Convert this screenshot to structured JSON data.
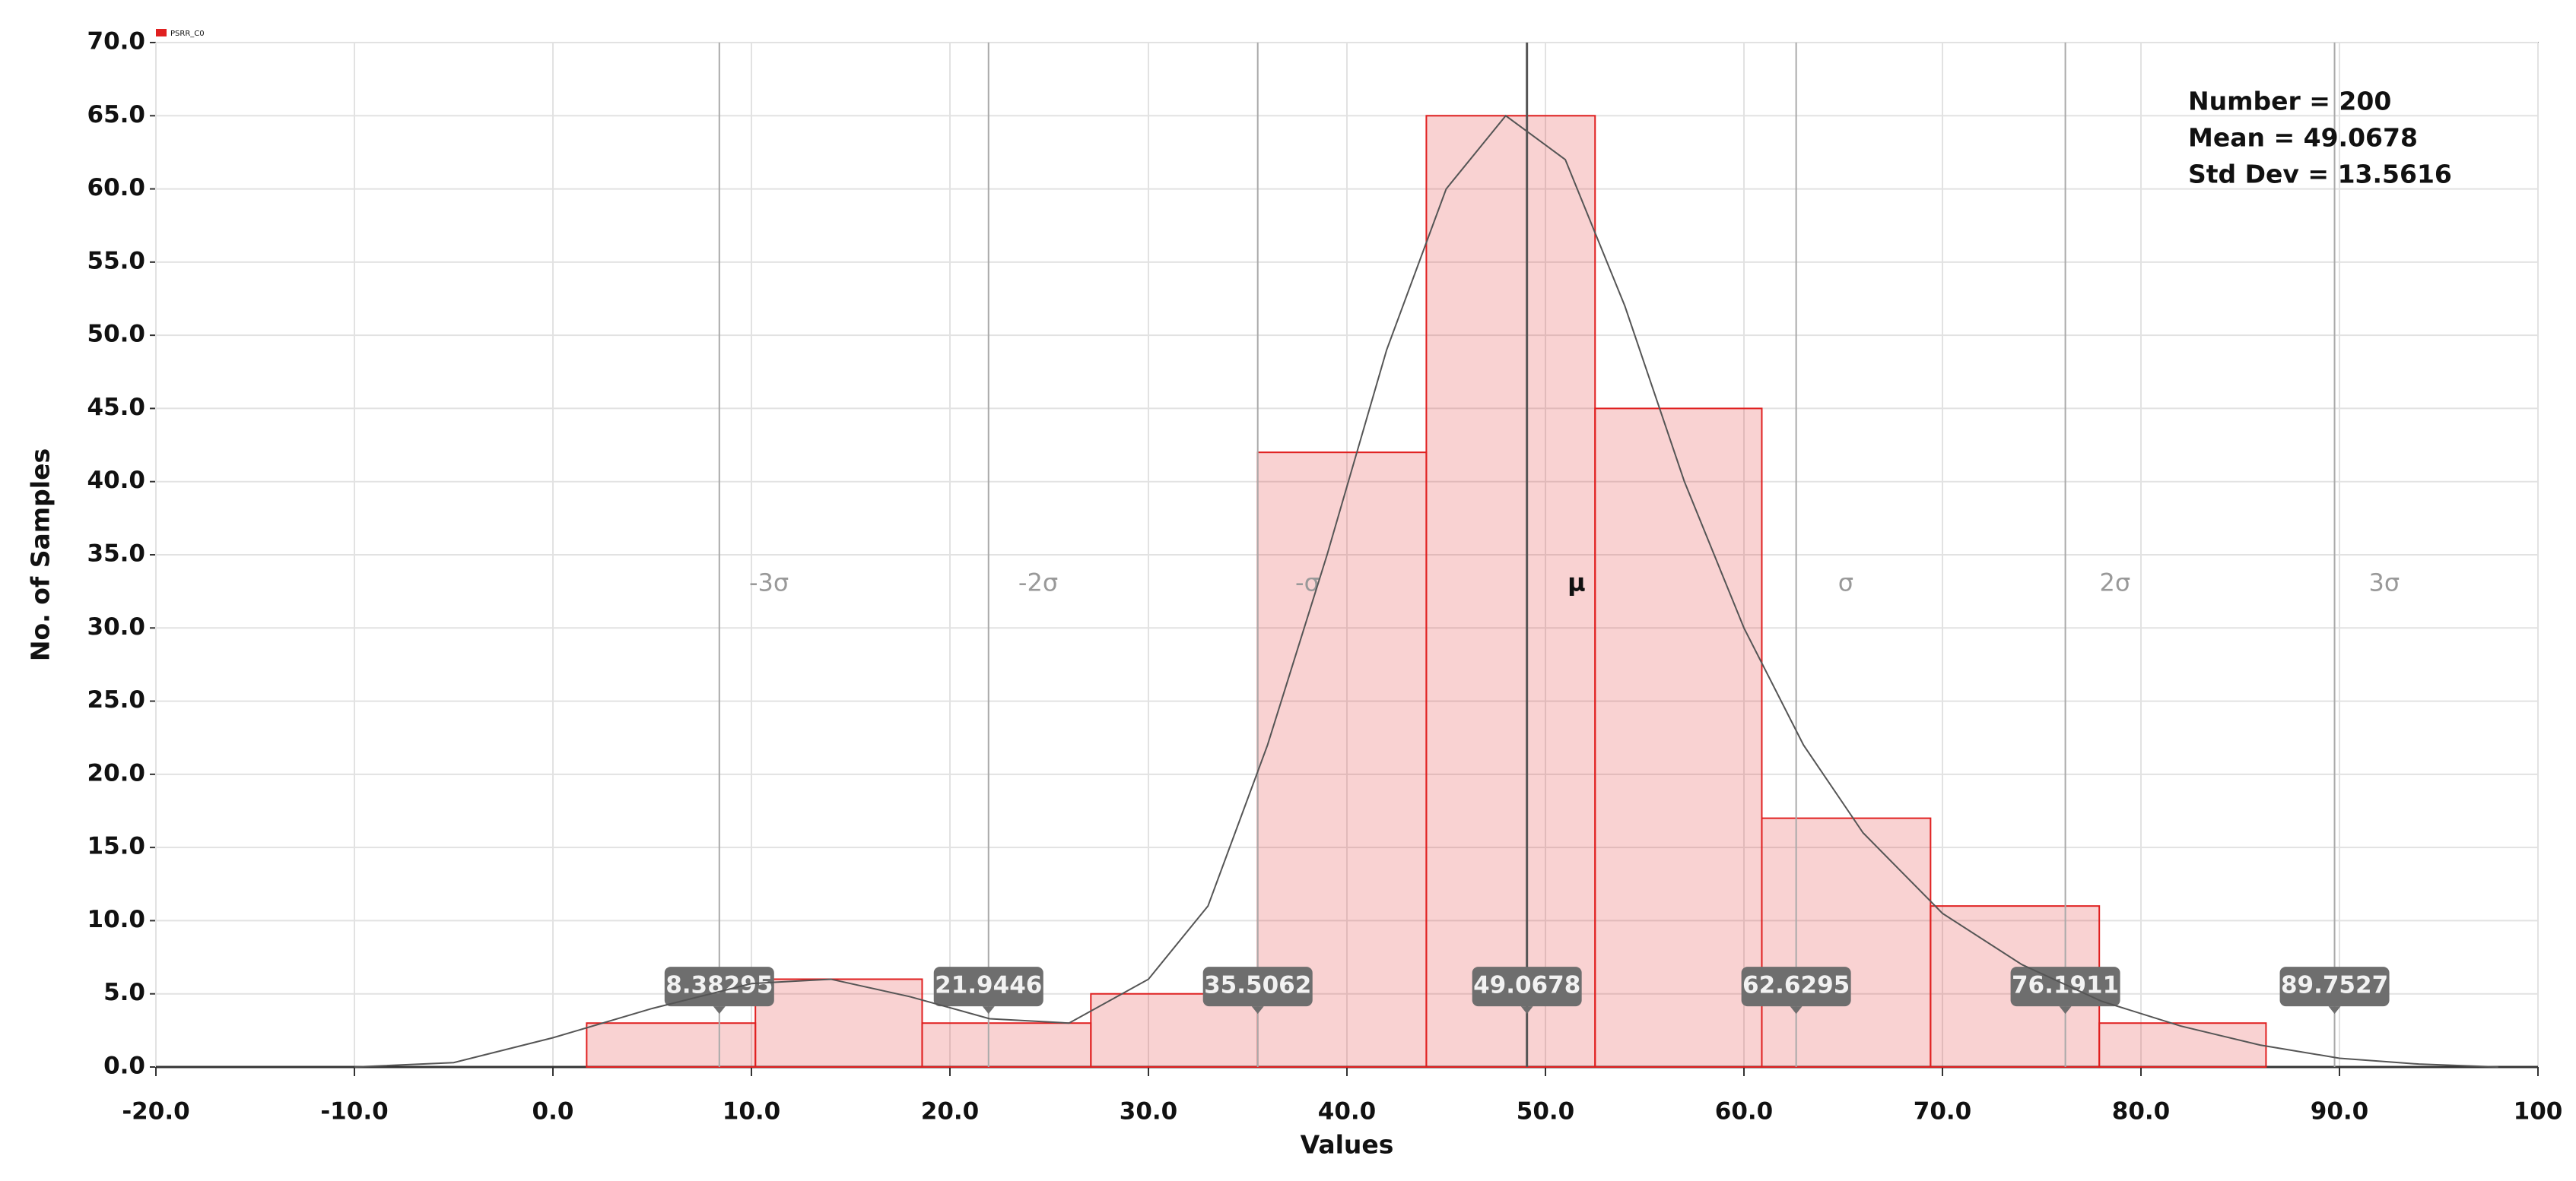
{
  "chart_data": {
    "type": "histogram",
    "legend": "PSRR_C0",
    "x_label": "Values",
    "y_label": "No. of Samples",
    "bins": [
      1.7,
      10.2,
      18.6,
      27.1,
      35.5,
      44.0,
      52.5,
      60.9,
      69.4,
      77.9,
      86.3
    ],
    "values": [
      3,
      6,
      3,
      5,
      42,
      65,
      45,
      17,
      11,
      3
    ],
    "color": "#e02020",
    "curve": {
      "x": [
        -10,
        -5,
        0,
        5,
        10,
        14,
        18,
        22,
        26,
        30,
        33,
        36,
        39,
        42,
        45,
        48,
        51,
        54,
        57,
        60,
        63,
        66,
        70,
        74,
        78,
        82,
        86,
        90,
        94,
        98
      ],
      "y": [
        0,
        0.3,
        2,
        4,
        5.7,
        6,
        4.8,
        3.3,
        3,
        6,
        11,
        22,
        35,
        49,
        60,
        65,
        62,
        52,
        40,
        30,
        22,
        16,
        10.5,
        7,
        4.5,
        2.8,
        1.5,
        0.6,
        0.2,
        0
      ]
    },
    "sigma_lines": [
      8.38295,
      21.9446,
      35.5062,
      49.0678,
      62.6295,
      76.1911,
      89.7527
    ],
    "sigma_labels": [
      "-3σ",
      "-2σ",
      "-σ",
      "μ",
      "σ",
      "2σ",
      "3σ"
    ],
    "stats": [
      "Number = 200",
      "Mean = 49.0678",
      "Std Dev = 13.5616"
    ],
    "xlim": [
      -20,
      100
    ],
    "xticks": [
      {
        "value": -20,
        "label": "-20.0"
      },
      {
        "value": -10,
        "label": "-10.0"
      },
      {
        "value": 0,
        "label": "0.0"
      },
      {
        "value": 10,
        "label": "10.0"
      },
      {
        "value": 20,
        "label": "20.0"
      },
      {
        "value": 30,
        "label": "30.0"
      },
      {
        "value": 40,
        "label": "40.0"
      },
      {
        "value": 50,
        "label": "50.0"
      },
      {
        "value": 60,
        "label": "60.0"
      },
      {
        "value": 70,
        "label": "70.0"
      },
      {
        "value": 80,
        "label": "80.0"
      },
      {
        "value": 90,
        "label": "90.0"
      },
      100
    ],
    "ylim": [
      0,
      70
    ],
    "yticks": [
      {
        "value": 0,
        "label": "0.0"
      },
      {
        "value": 5,
        "label": "5.0"
      },
      {
        "value": 10,
        "label": "10.0"
      },
      {
        "value": 15,
        "label": "15.0"
      },
      {
        "value": 20,
        "label": "20.0"
      },
      {
        "value": 25,
        "label": "25.0"
      },
      {
        "value": 30,
        "label": "30.0"
      },
      {
        "value": 35,
        "label": "35.0"
      },
      {
        "value": 40,
        "label": "40.0"
      },
      {
        "value": 45,
        "label": "45.0"
      },
      {
        "value": 50,
        "label": "50.0"
      },
      {
        "value": 55,
        "label": "55.0"
      },
      {
        "value": 60,
        "label": "60.0"
      },
      {
        "value": 65,
        "label": "65.0"
      },
      {
        "value": 70,
        "label": "70.0"
      }
    ],
    "grid": true
  }
}
